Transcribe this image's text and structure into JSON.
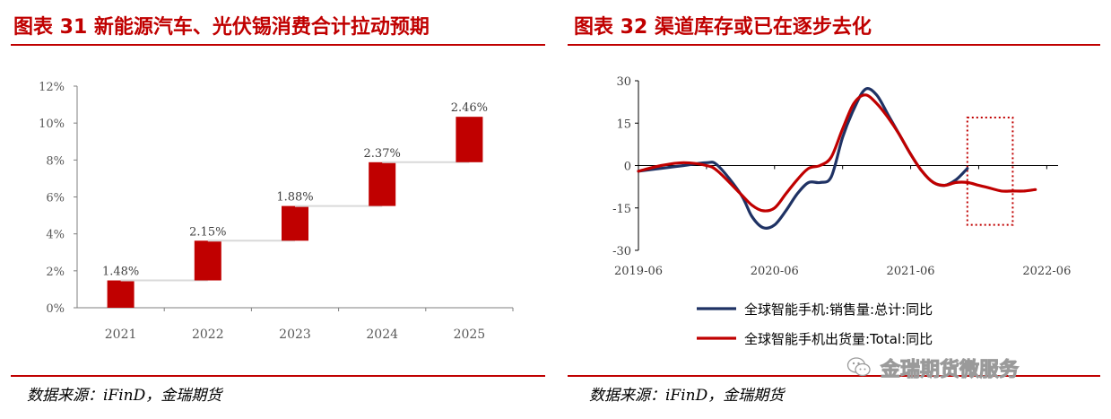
{
  "left_panel": {
    "title": "图表 31 新能源汽车、光伏锡消费合计拉动预期",
    "source": "数据来源：iFinD，金瑞期货"
  },
  "right_panel": {
    "title": "图表 32 渠道库存或已在逐步去化",
    "source": "数据来源：iFinD，金瑞期货"
  },
  "watermark": {
    "text": "金瑞期货微服务",
    "icon": "wechat-icon"
  },
  "colors": {
    "accent": "#c00000",
    "navy": "#1f3264",
    "grey": "#d9d9d9"
  },
  "chart_data": [
    {
      "type": "bar",
      "subtype": "waterfall",
      "categories": [
        "2021",
        "2022",
        "2023",
        "2024",
        "2025"
      ],
      "values": [
        1.48,
        2.15,
        1.88,
        2.37,
        2.46
      ],
      "data_labels": [
        "1.48%",
        "2.15%",
        "1.88%",
        "2.37%",
        "2.46%"
      ],
      "ylim": [
        0,
        12
      ],
      "yticks": [
        "0%",
        "2%",
        "4%",
        "6%",
        "8%",
        "10%",
        "12%"
      ],
      "connectors": true,
      "grid": false,
      "color": "#c00000"
    },
    {
      "type": "line",
      "ylim": [
        -30,
        30
      ],
      "yticks": [
        "-30",
        "-15",
        "0",
        "15",
        "30"
      ],
      "xticks": [
        "2019-06",
        "2020-06",
        "2021-06",
        "2022-06"
      ],
      "xrange": [
        "2019-06",
        "2022-07"
      ],
      "highlight_box": {
        "x": [
          "2021-11",
          "2022-03"
        ],
        "y": [
          -21,
          17
        ]
      },
      "legend_position": "bottom",
      "series": [
        {
          "name": "全球智能手机:销售量:总计:同比",
          "color": "#1f3264",
          "points": [
            [
              "2019-06",
              -2
            ],
            [
              "2019-08",
              -1
            ],
            [
              "2019-10",
              0
            ],
            [
              "2019-12",
              1
            ],
            [
              "2020-01",
              0
            ],
            [
              "2020-03",
              -10
            ],
            [
              "2020-04",
              -18
            ],
            [
              "2020-05",
              -22
            ],
            [
              "2020-06",
              -21
            ],
            [
              "2020-07",
              -16
            ],
            [
              "2020-08",
              -10
            ],
            [
              "2020-09",
              -6
            ],
            [
              "2020-10",
              -6
            ],
            [
              "2020-11",
              -4
            ],
            [
              "2020-12",
              10
            ],
            [
              "2021-01",
              20
            ],
            [
              "2021-02",
              27
            ],
            [
              "2021-03",
              25
            ],
            [
              "2021-04",
              18
            ],
            [
              "2021-05",
              11
            ],
            [
              "2021-06",
              4
            ],
            [
              "2021-07",
              -2
            ],
            [
              "2021-08",
              -6
            ],
            [
              "2021-09",
              -7
            ],
            [
              "2021-10",
              -5
            ],
            [
              "2021-11",
              -1
            ]
          ]
        },
        {
          "name": "全球智能手机出货量:Total:同比",
          "color": "#c00000",
          "points": [
            [
              "2019-06",
              -2
            ],
            [
              "2019-08",
              0
            ],
            [
              "2019-10",
              1
            ],
            [
              "2019-12",
              0
            ],
            [
              "2020-01",
              -2
            ],
            [
              "2020-03",
              -10
            ],
            [
              "2020-04",
              -14
            ],
            [
              "2020-05",
              -16
            ],
            [
              "2020-06",
              -15
            ],
            [
              "2020-07",
              -10
            ],
            [
              "2020-08",
              -5
            ],
            [
              "2020-09",
              -1
            ],
            [
              "2020-10",
              0
            ],
            [
              "2020-11",
              3
            ],
            [
              "2020-12",
              13
            ],
            [
              "2021-01",
              22
            ],
            [
              "2021-02",
              25
            ],
            [
              "2021-03",
              22
            ],
            [
              "2021-04",
              17
            ],
            [
              "2021-05",
              11
            ],
            [
              "2021-06",
              4
            ],
            [
              "2021-07",
              -2
            ],
            [
              "2021-08",
              -6
            ],
            [
              "2021-09",
              -7
            ],
            [
              "2021-10",
              -6
            ],
            [
              "2021-11",
              -6
            ],
            [
              "2021-12",
              -7
            ],
            [
              "2022-01",
              -8
            ],
            [
              "2022-02",
              -9
            ],
            [
              "2022-03",
              -9
            ],
            [
              "2022-04",
              -9
            ],
            [
              "2022-05",
              -8.5
            ]
          ]
        }
      ]
    }
  ]
}
